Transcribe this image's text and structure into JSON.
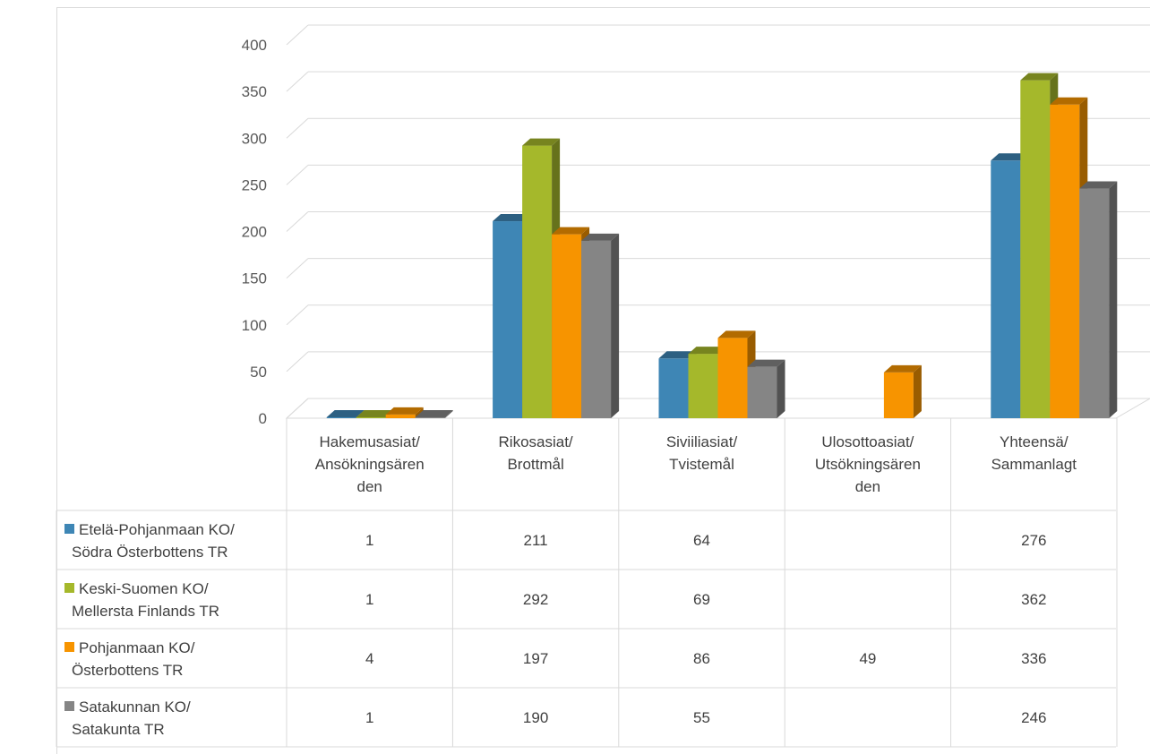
{
  "chart_data": {
    "type": "bar",
    "style": "3d-clustered-column-with-data-table",
    "categories": [
      [
        "Hakemusasiat/",
        "Ansökningsären",
        "den"
      ],
      [
        "Rikosasiat/",
        "Brottmål"
      ],
      [
        "Siviiliasiat/",
        "Tvistemål"
      ],
      [
        "Ulosottoasiat/",
        "Utsökningsären",
        "den"
      ],
      [
        "Yhteensä/",
        "Sammanlagt"
      ]
    ],
    "series": [
      {
        "name": [
          "Etelä-Pohjanmaan KO/",
          "Södra Österbottens TR"
        ],
        "color": "#3e86b5",
        "values": [
          1,
          211,
          64,
          null,
          276
        ]
      },
      {
        "name": [
          "Keski-Suomen KO/",
          "Mellersta Finlands TR"
        ],
        "color": "#a5b82b",
        "values": [
          1,
          292,
          69,
          null,
          362
        ]
      },
      {
        "name": [
          "Pohjanmaan KO/",
          "Österbottens TR"
        ],
        "color": "#f79400",
        "values": [
          4,
          197,
          86,
          49,
          336
        ]
      },
      {
        "name": [
          "Satakunnan KO/",
          "Satakunta TR"
        ],
        "color": "#858585",
        "values": [
          1,
          190,
          55,
          null,
          246
        ]
      }
    ],
    "y_ticks": [
      "0",
      "50",
      "100",
      "150",
      "200",
      "250",
      "300",
      "350",
      "400"
    ],
    "ylim": [
      0,
      400
    ],
    "grid": true,
    "legend": "data-table-left"
  }
}
